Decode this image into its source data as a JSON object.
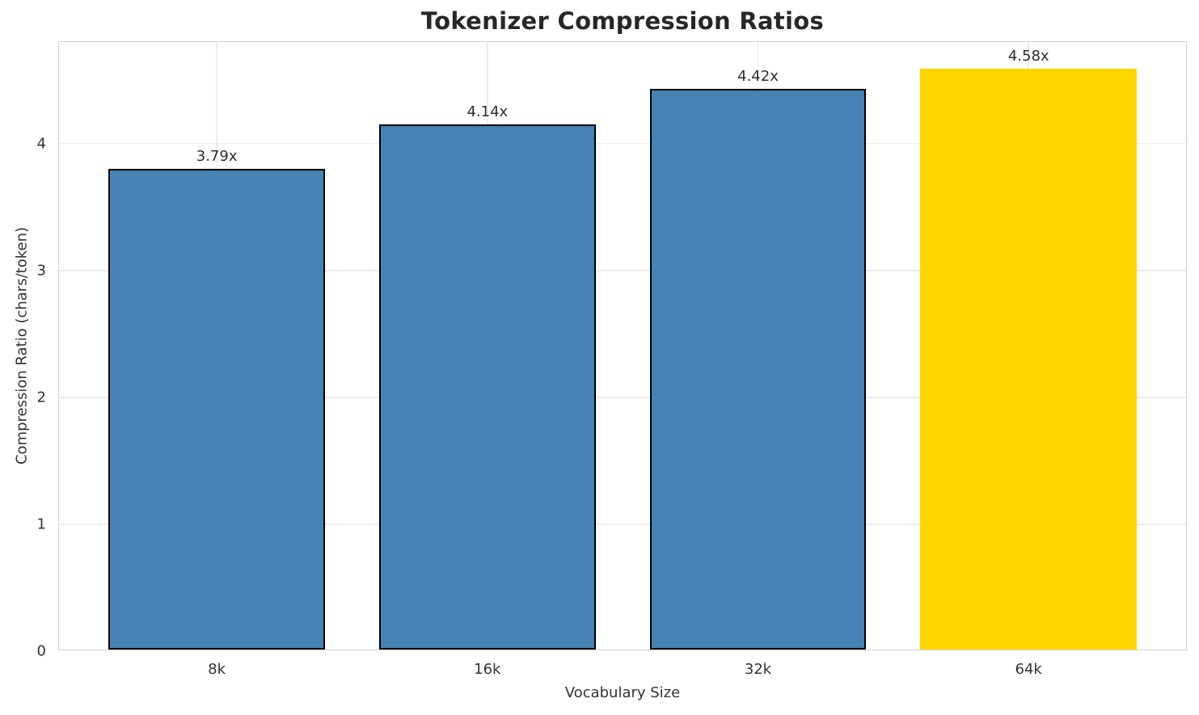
{
  "chart_data": {
    "type": "bar",
    "title": "Tokenizer Compression Ratios",
    "xlabel": "Vocabulary Size",
    "ylabel": "Compression Ratio (chars/token)",
    "categories": [
      "8k",
      "16k",
      "32k",
      "64k"
    ],
    "values": [
      3.79,
      4.14,
      4.42,
      4.58
    ],
    "bar_labels": [
      "3.79x",
      "4.14x",
      "4.42x",
      "4.58x"
    ],
    "bar_colors": [
      "#4682B4",
      "#4682B4",
      "#4682B4",
      "#FFD700"
    ],
    "bar_edge_colors": [
      "#000000",
      "#000000",
      "#000000",
      "none"
    ],
    "highlight_index": 3,
    "yticks": [
      0,
      1,
      2,
      3,
      4
    ],
    "ylim": [
      0,
      4.8
    ],
    "grid": true,
    "grid_color": "#ececec",
    "spine_color": "#d4d4d4",
    "legend": "none"
  }
}
